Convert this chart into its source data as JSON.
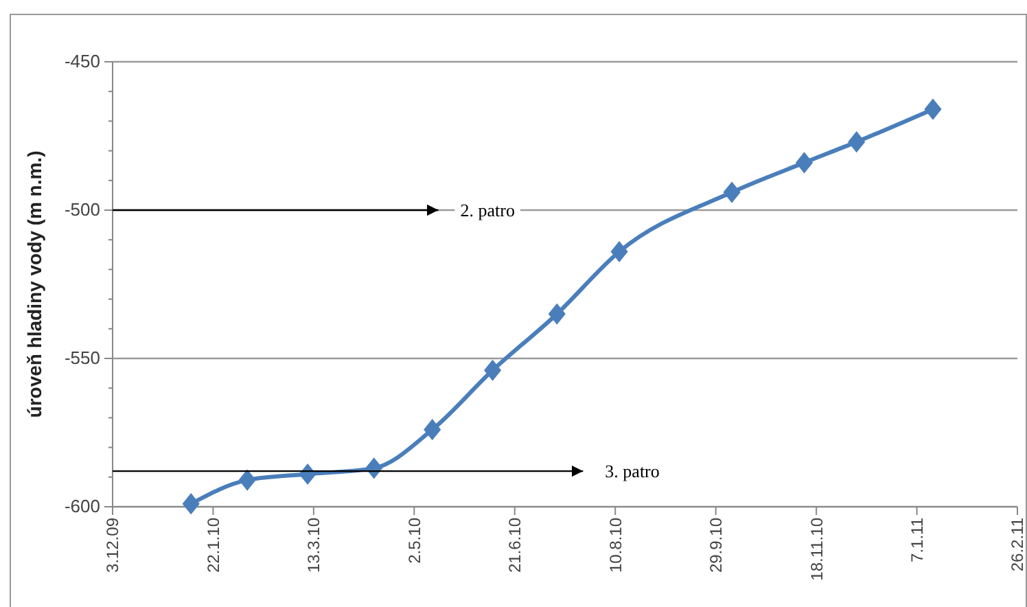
{
  "chart_data": {
    "type": "line",
    "ylabel": "úroveň hladiny vody (m n.m.)",
    "x": [
      "2010-01-11",
      "2010-02-08",
      "2010-03-10",
      "2010-04-12",
      "2010-05-11",
      "2010-06-10",
      "2010-07-12",
      "2010-08-12",
      "2010-10-07",
      "2010-11-12",
      "2010-12-08",
      "2011-01-15"
    ],
    "series": [
      {
        "color": "#4a7ebb",
        "values": [
          -599,
          -591,
          -589,
          -587,
          -574,
          -554,
          -535,
          -514,
          -494,
          -484,
          -477,
          -466
        ]
      }
    ],
    "xlim": [
      "2009-12-03",
      "2011-02-26"
    ],
    "xticks": [
      {
        "value": "2009-12-03",
        "label": "3.12.09"
      },
      {
        "value": "2010-01-22",
        "label": "22.1.10"
      },
      {
        "value": "2010-03-13",
        "label": "13.3.10"
      },
      {
        "value": "2010-05-02",
        "label": "2.5.10"
      },
      {
        "value": "2010-06-21",
        "label": "21.6.10"
      },
      {
        "value": "2010-08-10",
        "label": "10.8.10"
      },
      {
        "value": "2010-09-29",
        "label": "29.9.10"
      },
      {
        "value": "2010-11-18",
        "label": "18.11.10"
      },
      {
        "value": "2011-01-07",
        "label": "7.1.11"
      },
      {
        "value": "2011-02-26",
        "label": "26.2.11"
      }
    ],
    "ylim": [
      -600,
      -450
    ],
    "yticks": [
      -600,
      -550,
      -500,
      -450
    ],
    "grid": "y",
    "marker": "diamond",
    "line_style": "solid",
    "ref_lines": [
      {
        "axis": "y",
        "value": -500,
        "label": "2. patro",
        "color": "#000000"
      },
      {
        "axis": "y",
        "value": -588,
        "label": "3. patro",
        "color": "#000000"
      }
    ]
  }
}
